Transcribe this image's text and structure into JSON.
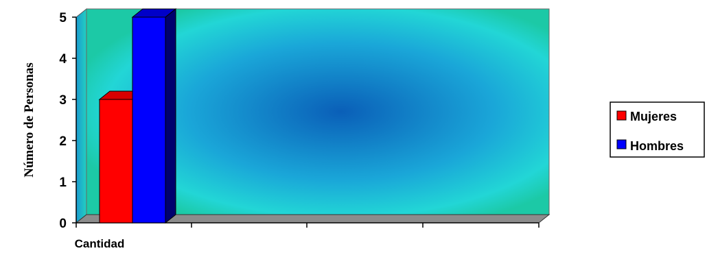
{
  "chart_data": {
    "type": "bar",
    "title": "",
    "xlabel": "",
    "ylabel": "Número de Personas",
    "categories": [
      "Cantidad"
    ],
    "series": [
      {
        "name": "Mujeres",
        "values": [
          3
        ]
      },
      {
        "name": "Hombres",
        "values": [
          5
        ]
      }
    ],
    "ylim": [
      0,
      5
    ],
    "yticks": [
      "0",
      "1",
      "2",
      "3",
      "4",
      "5"
    ],
    "legend_position": "right",
    "grid": false,
    "colors": {
      "Mujeres": "#ff0000",
      "Hombres": "#0000ff",
      "wall_edge": "#1fcaa8",
      "wall_center": "#0a6fc8",
      "floor": "#8c8c8c"
    }
  }
}
